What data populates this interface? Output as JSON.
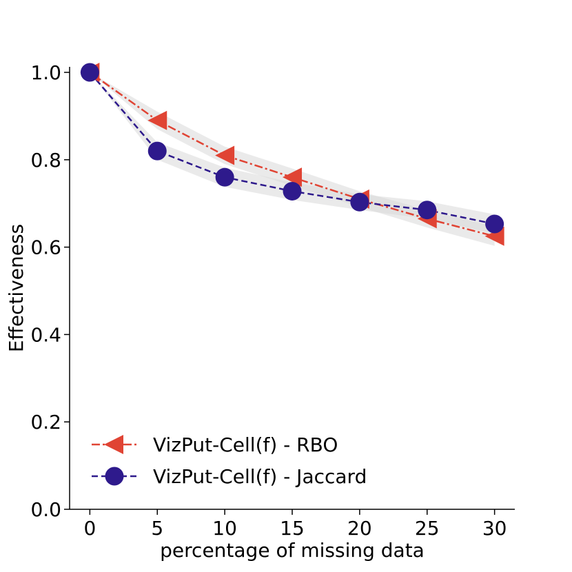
{
  "chart_data": {
    "type": "line",
    "title": "",
    "xlabel": "percentage of missing data",
    "ylabel": "Effectiveness",
    "x": [
      0,
      5,
      10,
      15,
      20,
      25,
      30
    ],
    "xlim": [
      -1.5,
      31.5
    ],
    "ylim": [
      0.0,
      1.0
    ],
    "xticks": [
      "0",
      "5",
      "10",
      "15",
      "20",
      "25",
      "30"
    ],
    "yticks": [
      "0.0",
      "0.2",
      "0.4",
      "0.6",
      "0.8",
      "1.0"
    ],
    "legend_position": "lower-left",
    "series": [
      {
        "name": "VizPut-Cell(f) - RBO",
        "color": "#e04434",
        "marker": "triangle-left",
        "linestyle": "dash-dot",
        "values": [
          1.0,
          0.89,
          0.81,
          0.76,
          0.71,
          0.665,
          0.625
        ],
        "band_half_width": [
          0.0,
          0.02,
          0.02,
          0.02,
          0.018,
          0.02,
          0.022
        ]
      },
      {
        "name": "VizPut-Cell(f) - Jaccard",
        "color": "#2e1a8c",
        "marker": "circle",
        "linestyle": "dashed",
        "values": [
          1.0,
          0.82,
          0.76,
          0.728,
          0.703,
          0.685,
          0.653
        ],
        "band_half_width": [
          0.0,
          0.02,
          0.022,
          0.02,
          0.018,
          0.02,
          0.022
        ]
      }
    ],
    "band_color": "#d9d9d9"
  }
}
